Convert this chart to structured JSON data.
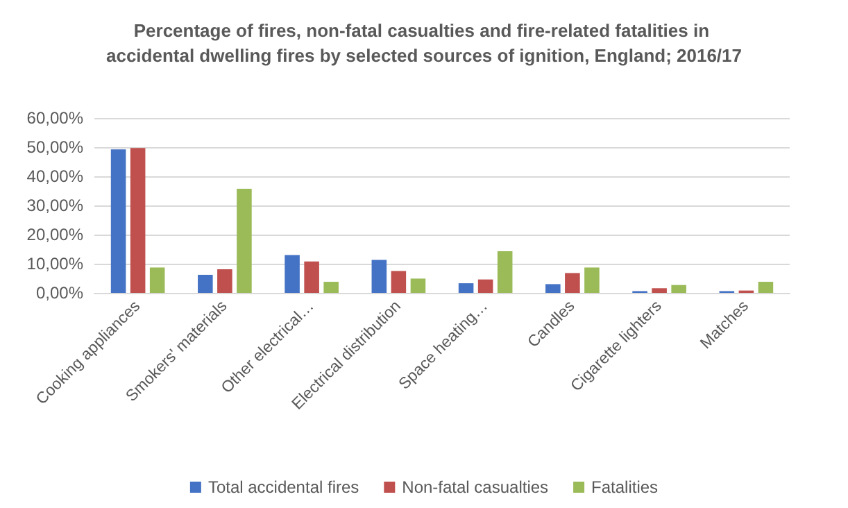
{
  "chart_data": {
    "type": "bar",
    "title": "Percentage of fires, non-fatal casualties and fire-related fatalities in accidental dwelling fires by selected sources of ignition, England; 2016/17",
    "categories": [
      "Cooking appliances",
      "Smokers' materials",
      "Other electrical…",
      "Electrical distribution",
      "Space heating…",
      "Candles",
      "Cigarette lighters",
      "Matches"
    ],
    "series": [
      {
        "name": "Total accidental fires",
        "color": "#4472c4",
        "values": [
          49.2,
          6.2,
          13.0,
          11.3,
          3.3,
          3.0,
          0.6,
          0.6
        ]
      },
      {
        "name": "Non-fatal casualties",
        "color": "#c0504d",
        "values": [
          49.7,
          8.1,
          10.8,
          7.5,
          4.6,
          6.8,
          1.6,
          0.8
        ]
      },
      {
        "name": "Fatalities",
        "color": "#9bbb59",
        "values": [
          8.7,
          35.7,
          3.8,
          4.9,
          14.3,
          8.7,
          2.7,
          3.8
        ]
      }
    ],
    "ylim": [
      0,
      60
    ],
    "yticks": [
      {
        "value": 0,
        "label": "0,00%"
      },
      {
        "value": 10,
        "label": "10,00%"
      },
      {
        "value": 20,
        "label": "20,00%"
      },
      {
        "value": 30,
        "label": "30,00%"
      },
      {
        "value": 40,
        "label": "40,00%"
      },
      {
        "value": 50,
        "label": "50,00%"
      },
      {
        "value": 60,
        "label": "60,00%"
      }
    ],
    "grid": "y",
    "legend": "bottom"
  }
}
